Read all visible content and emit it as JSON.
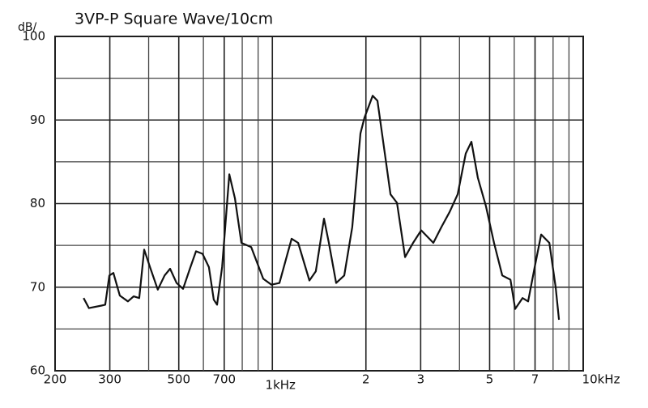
{
  "chart_data": {
    "type": "line",
    "title": "3VP-P Square Wave/10cm",
    "y_label": "dB/",
    "xscale": "log",
    "xlim": [
      200,
      10000
    ],
    "ylim": [
      60,
      100
    ],
    "xticks": [
      200,
      300,
      500,
      700,
      {
        "value": 1000,
        "label": "1kHz"
      },
      {
        "value": 2000,
        "label": "2"
      },
      {
        "value": 3000,
        "label": "3"
      },
      {
        "value": 5000,
        "label": "5"
      },
      {
        "value": 7000,
        "label": "7"
      },
      {
        "value": 10000,
        "label": "10kHz"
      }
    ],
    "xminor": [
      400,
      600,
      800,
      900,
      4000,
      6000,
      8000,
      9000
    ],
    "yticks": [
      60,
      70,
      80,
      90,
      100
    ],
    "yminor": [
      65,
      75,
      85,
      95
    ],
    "grid": true,
    "series": [
      {
        "color": "#111111",
        "x": [
          247,
          257,
          282,
          290,
          299,
          308,
          323,
          343,
          358,
          373,
          387,
          404,
          428,
          450,
          469,
          492,
          516,
          545,
          568,
          596,
          625,
          648,
          664,
          689,
          727,
          758,
          795,
          855,
          935,
          993,
          1054,
          1153,
          1211,
          1316,
          1380,
          1466,
          1520,
          1604,
          1703,
          1808,
          1921,
          1979,
          2102,
          2178,
          2300,
          2399,
          2518,
          2673,
          2837,
          3012,
          3296,
          3500,
          3717,
          3945,
          4189,
          4368,
          4582,
          4866,
          5164,
          5490,
          5834,
          6041,
          6382,
          6650,
          6981,
          7326,
          7783,
          8155,
          8359
        ],
        "values": [
          68.7,
          67.5,
          67.8,
          67.9,
          71.4,
          71.7,
          69,
          68.3,
          68.9,
          68.7,
          74.5,
          72.4,
          69.7,
          71.4,
          72.2,
          70.5,
          69.8,
          72.4,
          74.3,
          74,
          72.4,
          68.5,
          67.9,
          72.4,
          83.5,
          80.6,
          75.3,
          74.8,
          71,
          70.3,
          70.5,
          75.8,
          75.3,
          70.8,
          71.9,
          78.2,
          75.3,
          70.5,
          71.4,
          77.2,
          88.4,
          90.3,
          92.9,
          92.3,
          86,
          81.1,
          80.1,
          73.6,
          75.3,
          76.8,
          75.3,
          77.2,
          79,
          81.1,
          86,
          87.4,
          83.1,
          79.7,
          75.3,
          71.4,
          70.9,
          67.4,
          68.7,
          68.3,
          72.4,
          76.3,
          75.3,
          70,
          66.1
        ]
      }
    ]
  }
}
